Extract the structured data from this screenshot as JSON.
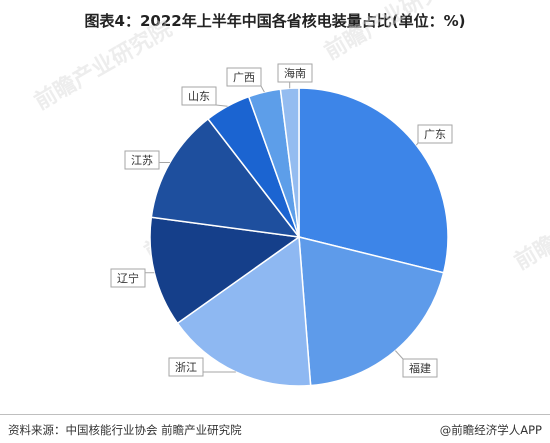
{
  "title": "图表4：2022年上半年中国各省核电装量占比(单位：%)",
  "source": "资料来源：中国核能行业协会 前瞻产业研究院",
  "brand": "@前瞻经济学人APP",
  "watermark": "前瞻产业研究院",
  "colors": {
    "广东": "#3d85e8",
    "福建": "#5e9bea",
    "浙江": "#8eb8f2",
    "辽宁": "#153f8a",
    "江苏": "#1e4f9e",
    "山东": "#1b64d1",
    "广西": "#5d9ee9",
    "海南": "#94bcf0"
  },
  "chart_data": {
    "type": "pie",
    "title": "图表4：2022年上半年中国各省核电装量占比(单位：%)",
    "categories": [
      "广东",
      "福建",
      "浙江",
      "辽宁",
      "江苏",
      "山东",
      "广西",
      "海南"
    ],
    "values": [
      29.0,
      20.0,
      16.5,
      12.0,
      12.5,
      5.0,
      3.5,
      2.0
    ]
  }
}
